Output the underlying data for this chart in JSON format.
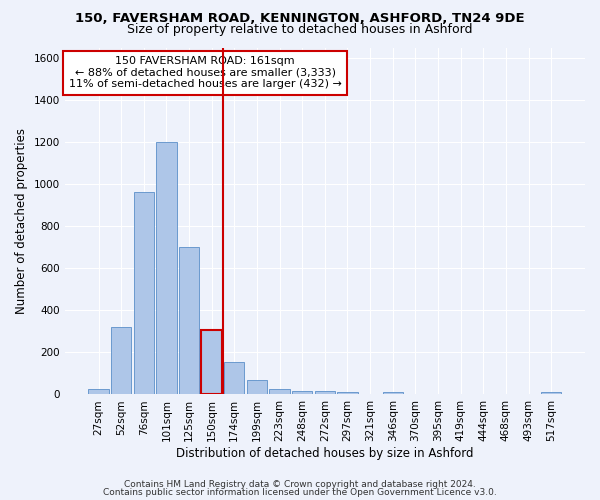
{
  "title1": "150, FAVERSHAM ROAD, KENNINGTON, ASHFORD, TN24 9DE",
  "title2": "Size of property relative to detached houses in Ashford",
  "xlabel": "Distribution of detached houses by size in Ashford",
  "ylabel": "Number of detached properties",
  "categories": [
    "27sqm",
    "52sqm",
    "76sqm",
    "101sqm",
    "125sqm",
    "150sqm",
    "174sqm",
    "199sqm",
    "223sqm",
    "248sqm",
    "272sqm",
    "297sqm",
    "321sqm",
    "346sqm",
    "370sqm",
    "395sqm",
    "419sqm",
    "444sqm",
    "468sqm",
    "493sqm",
    "517sqm"
  ],
  "values": [
    28,
    320,
    965,
    1200,
    700,
    305,
    155,
    70,
    28,
    18,
    18,
    10,
    0,
    12,
    0,
    0,
    0,
    0,
    0,
    0,
    12
  ],
  "bar_color": "#aec6e8",
  "bar_edge_color": "#5b8fc9",
  "highlight_index": 5,
  "highlight_color": "#cc0000",
  "annotation_line1": "150 FAVERSHAM ROAD: 161sqm",
  "annotation_line2": "← 88% of detached houses are smaller (3,333)",
  "annotation_line3": "11% of semi-detached houses are larger (432) →",
  "annotation_box_color": "#ffffff",
  "annotation_box_edge": "#cc0000",
  "vline_x": 5.5,
  "ylim": [
    0,
    1650
  ],
  "yticks": [
    0,
    200,
    400,
    600,
    800,
    1000,
    1200,
    1400,
    1600
  ],
  "footer1": "Contains HM Land Registry data © Crown copyright and database right 2024.",
  "footer2": "Contains public sector information licensed under the Open Government Licence v3.0.",
  "bg_color": "#eef2fb",
  "grid_color": "#ffffff",
  "title_fontsize": 9.5,
  "subtitle_fontsize": 9,
  "axis_label_fontsize": 8.5,
  "tick_fontsize": 7.5,
  "annotation_fontsize": 8,
  "footer_fontsize": 6.5
}
